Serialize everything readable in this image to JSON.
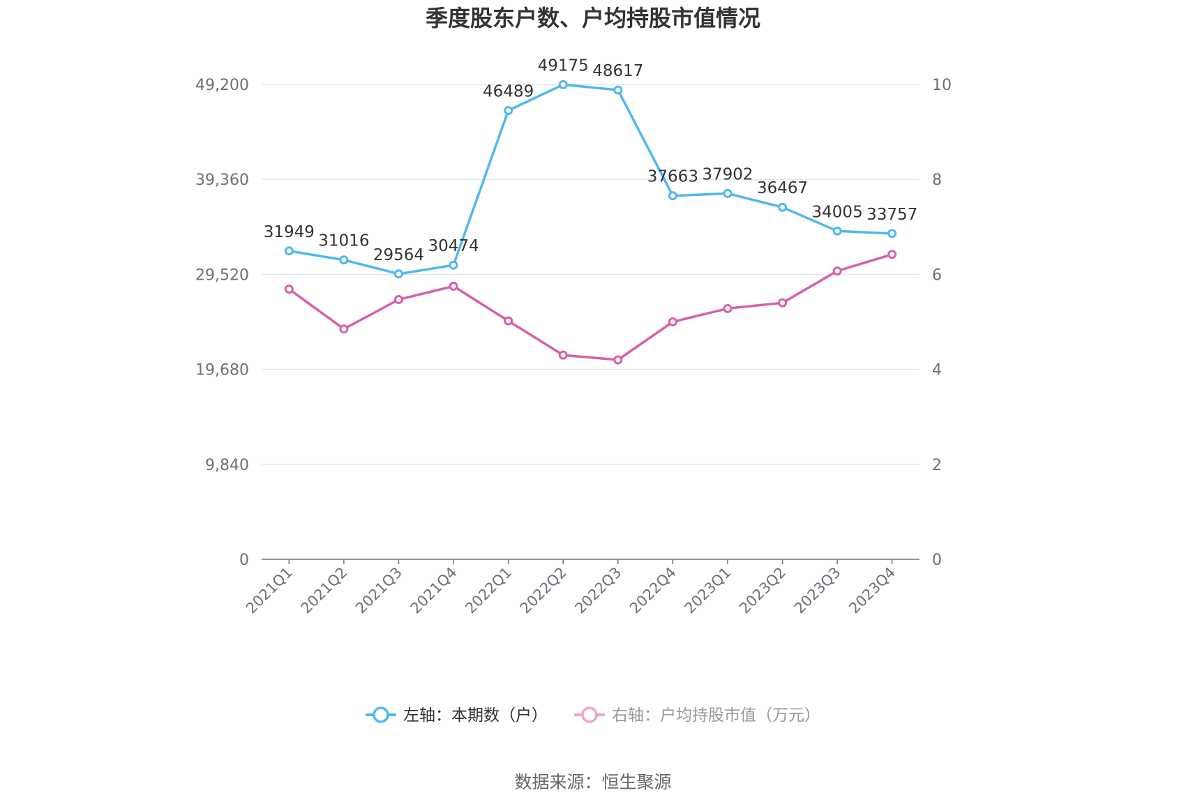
{
  "chart_data": {
    "type": "line",
    "title": "季度股东户数、户均持股市值情况",
    "categories": [
      "2021Q1",
      "2021Q2",
      "2021Q3",
      "2021Q4",
      "2022Q1",
      "2022Q2",
      "2022Q3",
      "2022Q4",
      "2023Q1",
      "2023Q2",
      "2023Q3",
      "2023Q4"
    ],
    "y_left": {
      "ticks": [
        "0",
        "9,840",
        "19,680",
        "29,520",
        "39,360",
        "49,200"
      ],
      "range": [
        0,
        49200
      ]
    },
    "y_right": {
      "ticks": [
        "0",
        "2",
        "4",
        "6",
        "8",
        "10"
      ],
      "range": [
        0,
        10
      ]
    },
    "grid": true,
    "legend_position": "bottom",
    "series": [
      {
        "name": "左轴：本期数（户）",
        "axis": "left",
        "color": "#4fb8f0",
        "values": [
          31949,
          31016,
          29564,
          30474,
          46489,
          49175,
          48617,
          37663,
          37902,
          36467,
          34005,
          33757
        ],
        "labels": [
          "31949",
          "31016",
          "29564",
          "30474",
          "46489",
          "49175",
          "48617",
          "37663",
          "37902",
          "36467",
          "34005",
          "33757"
        ]
      },
      {
        "name": "右轴：户均持股市值（万元）",
        "axis": "right",
        "color": "#d660a7",
        "values": [
          5.69,
          4.85,
          5.47,
          5.75,
          5.02,
          4.3,
          4.2,
          5.0,
          5.28,
          5.4,
          6.07,
          6.42
        ]
      }
    ]
  },
  "source": "数据来源：恒生聚源"
}
